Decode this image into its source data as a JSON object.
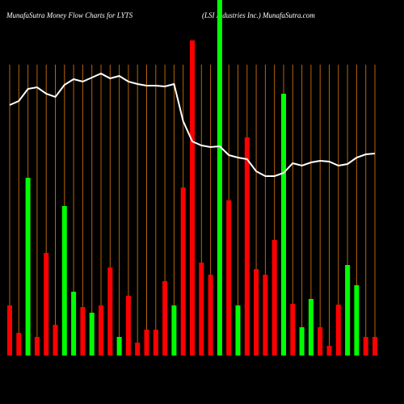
{
  "chart_data": {
    "type": "bar",
    "title": "MunafaSutra  Money Flow  Charts for LYTS",
    "subtitle": "(LSI Industries Inc.) MunafaSutra.com",
    "categories": [
      null,
      null,
      null,
      null,
      null,
      null,
      null,
      null,
      null,
      null,
      null,
      null,
      null,
      null,
      null,
      null,
      null,
      null,
      null,
      null,
      null,
      null,
      null,
      null,
      null,
      null,
      null,
      null,
      null,
      null,
      null,
      null,
      null,
      null,
      null,
      null,
      null,
      null,
      null,
      null,
      null
    ],
    "values": [
      62,
      28,
      220,
      23,
      127,
      38,
      185,
      79,
      60,
      53,
      62,
      109,
      23,
      74,
      16,
      32,
      32,
      92,
      62,
      208,
      390,
      115,
      100,
      445,
      192,
      62,
      270,
      107,
      100,
      143,
      324,
      64,
      35,
      70,
      35,
      12,
      63,
      112,
      87,
      23,
      23
    ],
    "colors": [
      "#ff0000",
      "#ff0000",
      "#00ff00",
      "#ff0000",
      "#ff0000",
      "#ff0000",
      "#00ff00",
      "#00ff00",
      "#ff0000",
      "#00ff00",
      "#ff0000",
      "#ff0000",
      "#00ff00",
      "#ff0000",
      "#ff0000",
      "#ff0000",
      "#ff0000",
      "#ff0000",
      "#00ff00",
      "#ff0000",
      "#ff0000",
      "#ff0000",
      "#ff0000",
      "#00ff00",
      "#ff0000",
      "#00ff00",
      "#ff0000",
      "#ff0000",
      "#ff0000",
      "#ff0000",
      "#00ff00",
      "#ff0000",
      "#00ff00",
      "#00ff00",
      "#ff0000",
      "#ff0000",
      "#ff0000",
      "#00ff00",
      "#00ff00",
      "#ff0000",
      "#ff0000"
    ],
    "line": {
      "color": "#ffffff",
      "values": [
        310,
        315,
        330,
        332,
        324,
        320,
        335,
        342,
        339,
        344,
        349,
        343,
        346,
        339,
        336,
        334,
        334,
        333,
        336,
        290,
        265,
        260,
        258,
        259,
        248,
        245,
        243,
        228,
        222,
        222,
        226,
        238,
        235,
        239,
        241,
        240,
        235,
        237,
        245,
        249,
        250
      ]
    },
    "ylim": [
      0,
      440
    ],
    "grid_color": "#b8650a"
  }
}
